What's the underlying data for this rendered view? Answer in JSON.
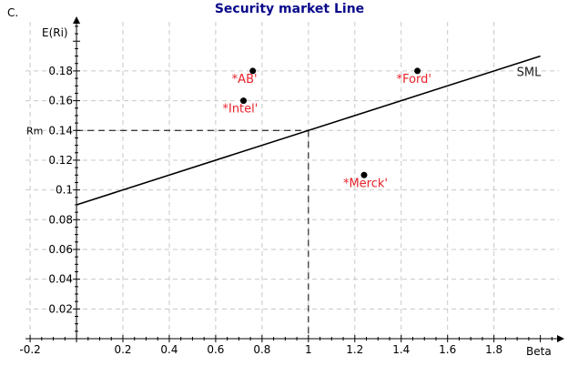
{
  "panel_label": "C.",
  "chart_data": {
    "type": "scatter",
    "title": "Security market Line",
    "xlabel": "Beta",
    "ylabel": "E(Ri)",
    "xlim": [
      -0.22,
      2.08
    ],
    "ylim": [
      0.0,
      0.213
    ],
    "x_ticks": [
      -0.2,
      0.2,
      0.4,
      0.6,
      0.8,
      1,
      1.2,
      1.4,
      1.6,
      1.8
    ],
    "x_tick_labels": [
      "-0.2",
      "0.2",
      "0.4",
      "0.6",
      "0.8",
      "1",
      "1.2",
      "1.4",
      "1.6",
      "1.8"
    ],
    "y_ticks": [
      0.02,
      0.04,
      0.06,
      0.08,
      0.1,
      0.12,
      0.14,
      0.16,
      0.18
    ],
    "y_tick_labels": [
      "0.02",
      "0.04",
      "0.06",
      "0.08",
      "0.1",
      "0.12",
      "0.14",
      "0.16",
      "0.18"
    ],
    "grid": true,
    "sml": {
      "label": "SML",
      "x": [
        0,
        2.0
      ],
      "y": [
        0.09,
        0.19
      ]
    },
    "market": {
      "label": "Rm",
      "beta": 1,
      "return": 0.14
    },
    "points": [
      {
        "label": "*AB'",
        "x": 0.76,
        "y": 0.18
      },
      {
        "label": "*Ford'",
        "x": 1.47,
        "y": 0.18
      },
      {
        "label": "*Intel'",
        "x": 0.72,
        "y": 0.16
      },
      {
        "label": "*Merck'",
        "x": 1.24,
        "y": 0.11
      }
    ],
    "colors": {
      "title": "#0a0a8a",
      "grid": "#c8c8c8",
      "line": "#000000",
      "point": "#000000",
      "point_label": "#e8202a"
    }
  }
}
